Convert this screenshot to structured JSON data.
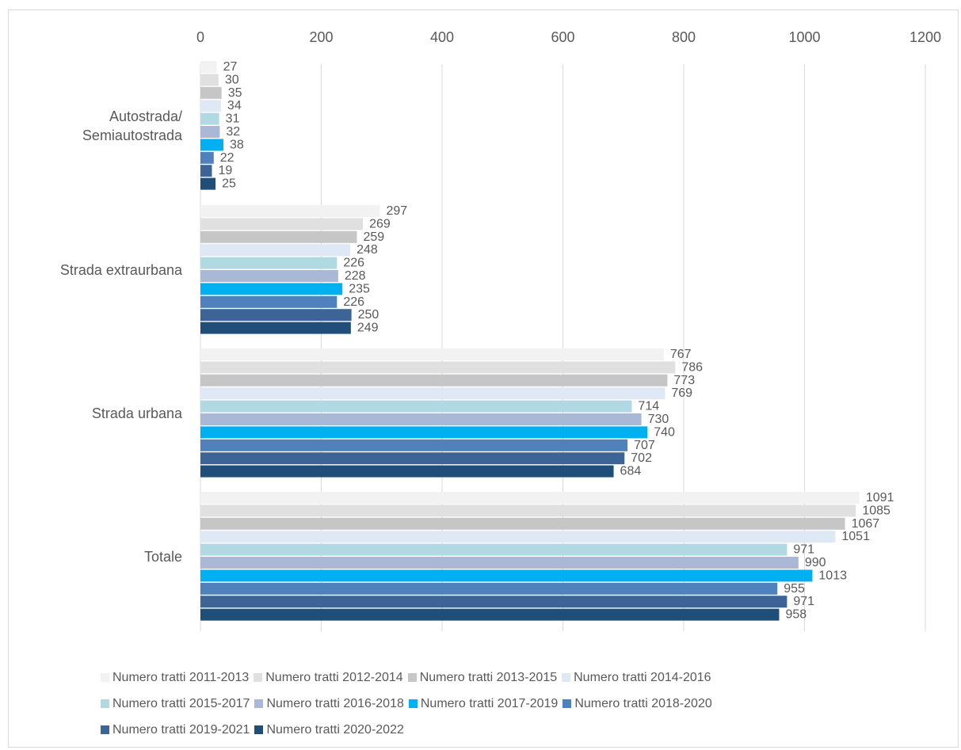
{
  "chart_data": {
    "type": "bar",
    "orientation": "horizontal",
    "categories": [
      "Autostrada/ Semiautostrada",
      "Strada extraurbana",
      "Strada urbana",
      "Totale"
    ],
    "category_lines": [
      [
        "Autostrada/",
        "Semiautostrada"
      ],
      [
        "Strada extraurbana"
      ],
      [
        "Strada urbana"
      ],
      [
        "Totale"
      ]
    ],
    "x_ticks": [
      "0",
      "200",
      "400",
      "600",
      "800",
      "1000",
      "1200"
    ],
    "xlim": [
      0,
      1200
    ],
    "grid": true,
    "legend_position": "bottom",
    "series": [
      {
        "name": "Numero tratti 2011-2013",
        "color": "#f2f2f2",
        "values": [
          27,
          297,
          767,
          1091
        ]
      },
      {
        "name": "Numero tratti 2012-2014",
        "color": "#e0e0e0",
        "values": [
          30,
          269,
          786,
          1085
        ]
      },
      {
        "name": "Numero tratti 2013-2015",
        "color": "#c6c6c6",
        "values": [
          35,
          259,
          773,
          1067
        ]
      },
      {
        "name": "Numero tratti 2014-2016",
        "color": "#dfe9f5",
        "values": [
          34,
          248,
          769,
          1051
        ]
      },
      {
        "name": "Numero tratti 2015-2017",
        "color": "#b0d9e3",
        "values": [
          31,
          226,
          714,
          971
        ]
      },
      {
        "name": "Numero tratti 2016-2018",
        "color": "#a9b8d6",
        "values": [
          32,
          228,
          730,
          990
        ]
      },
      {
        "name": "Numero tratti 2017-2019",
        "color": "#00b0f0",
        "values": [
          38,
          235,
          740,
          1013
        ]
      },
      {
        "name": "Numero tratti 2018-2020",
        "color": "#4f81bd",
        "values": [
          22,
          226,
          707,
          955
        ]
      },
      {
        "name": "Numero tratti 2019-2021",
        "color": "#3c6496",
        "values": [
          19,
          250,
          702,
          971
        ]
      },
      {
        "name": "Numero tratti 2020-2022",
        "color": "#1f4e79",
        "values": [
          25,
          249,
          684,
          958
        ]
      }
    ]
  }
}
